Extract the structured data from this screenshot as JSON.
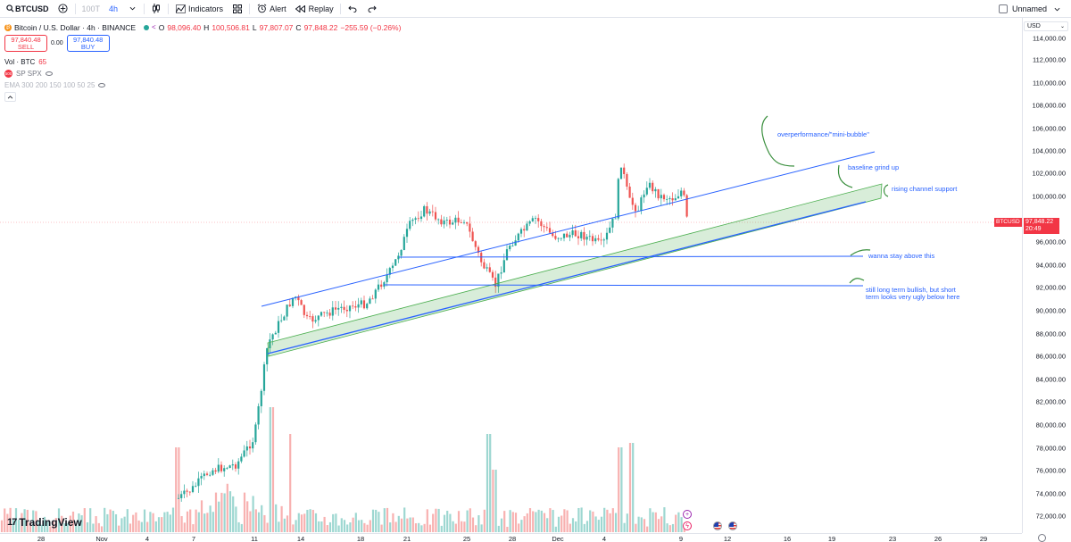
{
  "toolbar": {
    "symbol": "BTCUSD",
    "interval_muted": "100T",
    "interval": "4h",
    "indicators_label": "Indicators",
    "alert_label": "Alert",
    "replay_label": "Replay",
    "layout_name": "Unnamed"
  },
  "legend": {
    "title": "Bitcoin / U.S. Dollar · 4h · BINANCE",
    "open_key": "O",
    "open": "98,096.40",
    "high_key": "H",
    "high": "100,506.81",
    "low_key": "L",
    "low": "97,807.07",
    "close_key": "C",
    "close": "97,848.22",
    "change": "−255.59 (−0.26%)",
    "sell_price": "97,840.48",
    "sell_label": "SELL",
    "spread": "0.00",
    "buy_price": "97,840.48",
    "buy_label": "BUY",
    "vol_label": "Vol · BTC",
    "vol_value": "65",
    "sp_label": "SP SPX",
    "ema_label": "EMA 300 200 150 100 50 25"
  },
  "axis": {
    "currency": "USD",
    "price_ticks": [
      "114,000.00",
      "112,000.00",
      "110,000.00",
      "108,000.00",
      "106,000.00",
      "104,000.00",
      "102,000.00",
      "100,000.00",
      "96,000.00",
      "94,000.00",
      "92,000.00",
      "90,000.00",
      "88,000.00",
      "86,000.00",
      "84,000.00",
      "82,000.00",
      "80,000.00",
      "78,000.00",
      "76,000.00",
      "74,000.00",
      "72,000.00"
    ],
    "time_ticks": [
      "28",
      "Nov",
      "4",
      "7",
      "11",
      "14",
      "18",
      "21",
      "25",
      "28",
      "Dec",
      "4",
      "9",
      "12",
      "16",
      "19",
      "23",
      "26",
      "29"
    ]
  },
  "last_price": {
    "symbol": "BTCUSD",
    "price": "97,848.22",
    "countdown": "20:49"
  },
  "annotations": {
    "bubble": "overperformance/\"mini-bubble\"",
    "grind": "baseline grind up",
    "support": "rising channel support",
    "stay_above": "wanna stay above this",
    "long_term": "still long term bullish, but short term looks very ugly below here"
  },
  "logo": "TradingView",
  "colors": {
    "up": "#26a69a",
    "down": "#ef5350",
    "accent": "#2962ff",
    "channel": "#4caf50"
  }
}
